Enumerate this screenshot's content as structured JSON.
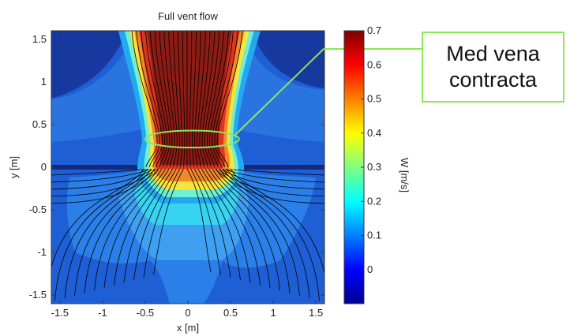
{
  "chart_data": {
    "type": "heatmap",
    "title": "Full vent flow",
    "xlabel": "x [m]",
    "ylabel": "y [m]",
    "xlim": [
      -1.6,
      1.6
    ],
    "ylim": [
      -1.6,
      1.6
    ],
    "x_ticks": [
      "-1.5",
      "-1",
      "-0.5",
      "0",
      "0.5",
      "1",
      "1.5"
    ],
    "x_tick_values": [
      -1.5,
      -1,
      -0.5,
      0,
      0.5,
      1,
      1.5
    ],
    "y_ticks": [
      "1.5",
      "1",
      "0.5",
      "0",
      "-0.5",
      "-1",
      "-1.5"
    ],
    "y_tick_values": [
      1.5,
      1,
      0.5,
      0,
      -0.5,
      -1,
      -1.5
    ],
    "colorbar": {
      "label": "W [m/s]",
      "range": [
        -0.1,
        0.7
      ],
      "ticks": [
        "0.7",
        "0.6",
        "0.5",
        "0.4",
        "0.3",
        "0.2",
        "0.1",
        "0"
      ],
      "tick_values": [
        0.7,
        0.6,
        0.5,
        0.4,
        0.3,
        0.2,
        0.1,
        0
      ],
      "colormap": "jet"
    },
    "annotation": {
      "text": "Med vena contracta",
      "line1": "Med vena",
      "line2": "contracta",
      "marker": "ellipse",
      "marker_color": "#8ee65a",
      "center": [
        0.05,
        0.33
      ],
      "radii": [
        0.55,
        0.1
      ]
    },
    "streamlines": "overlaid"
  }
}
